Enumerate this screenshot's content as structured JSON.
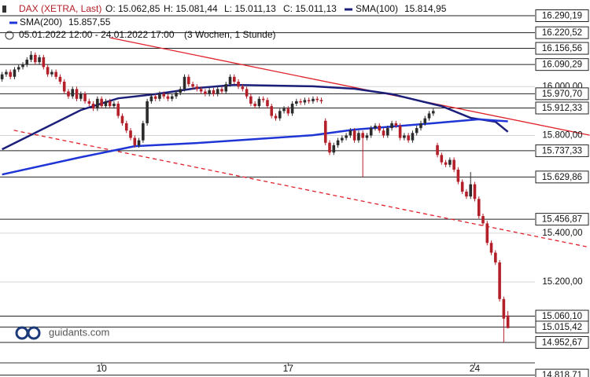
{
  "chart_data": {
    "type": "candlestick",
    "header": {
      "o": "O: 15.062,85",
      "h": "H: 15.081,44",
      "l": "L: 15.011,13",
      "c": "C: 15.011,13",
      "period": "05.01.2022 12:00 - 24.01.2022 17:00",
      "span": "(3 Wochen, 1 Stunde)"
    },
    "watermark": "guidants.com",
    "xlim": [
      -0.5,
      141.8
    ],
    "ylim": [
      14811,
      16354.5
    ],
    "xticks": [
      {
        "value": 24,
        "label": "10"
      },
      {
        "value": 69,
        "label": "17"
      },
      {
        "value": 114,
        "label": "24"
      }
    ],
    "yticks": [
      {
        "value": 16000,
        "label": "16.000,00"
      },
      {
        "value": 15800,
        "label": "15.800,00"
      },
      {
        "value": 15400,
        "label": "15.400,00"
      },
      {
        "value": 15200,
        "label": "15.200,00"
      }
    ],
    "grid": true,
    "levels": [
      {
        "value": 16290.19,
        "label": "16.290,19"
      },
      {
        "value": 16220.52,
        "label": "16.220,52"
      },
      {
        "value": 16156.56,
        "label": "16.156,56"
      },
      {
        "value": 16090.29,
        "label": "16.090,29"
      },
      {
        "value": 15970.7,
        "label": "15.970,70"
      },
      {
        "value": 15912.33,
        "label": "15.912,33"
      },
      {
        "value": 15737.33,
        "label": "15.737,33"
      },
      {
        "value": 15629.86,
        "label": "15.629,86"
      },
      {
        "value": 15456.87,
        "label": "15.456,87"
      },
      {
        "value": 15060.1,
        "label": "15.060,10"
      },
      {
        "value": 15015.42,
        "label": "15.015,42"
      },
      {
        "value": 14952.67,
        "label": "14.952,67"
      },
      {
        "value": 14818.71,
        "label": "14.818,71"
      }
    ],
    "series": [
      {
        "name": "DAX (XETRA, Last)",
        "up_color": "#2b2b2b",
        "down_color": "#b3202a",
        "open": [
          16030,
          16050,
          16060,
          16040,
          16070,
          16080,
          16090,
          16110,
          16130,
          16100,
          16120,
          16080,
          16050,
          16060,
          16040,
          16020,
          15980,
          15960,
          15990,
          15950,
          15970,
          15940,
          15930,
          15910,
          15950,
          15920,
          15940,
          15920,
          15930,
          15880,
          15850,
          15820,
          15790,
          15760,
          15780,
          15850,
          15940,
          15960,
          15950,
          15970,
          15960,
          15950,
          15960,
          15975,
          15990,
          16040,
          16010,
          16000,
          15990,
          15980,
          15970,
          15985,
          15970,
          15990,
          15980,
          16010,
          16040,
          16020,
          16000,
          15990,
          15960,
          15930,
          15920,
          15950,
          15945,
          15920,
          15880,
          15870,
          15900,
          15910,
          15890,
          15930,
          15940,
          15935,
          15945,
          15940,
          15950,
          15945,
          15860,
          15770,
          15730,
          15760,
          15780,
          15790,
          15800,
          15820,
          15780,
          15810,
          15790,
          15800,
          15830,
          15840,
          15820,
          15800,
          15830,
          15850,
          15840,
          15790,
          15800,
          15780,
          15810,
          15830,
          15850,
          15870,
          15890,
          15760,
          15720,
          15690,
          15680,
          15700,
          15660,
          15610,
          15570,
          15550,
          15600,
          15540,
          15470,
          15440,
          15360,
          15320,
          15280,
          15130,
          15062.85
        ],
        "high": [
          16060,
          16070,
          16070,
          16080,
          16090,
          16100,
          16120,
          16145,
          16140,
          16130,
          16130,
          16090,
          16070,
          16070,
          16050,
          16030,
          15990,
          16000,
          16000,
          15980,
          15980,
          15950,
          15940,
          15960,
          15960,
          15950,
          15950,
          15940,
          15940,
          15890,
          15860,
          15830,
          15800,
          15790,
          15860,
          15950,
          15970,
          15970,
          15980,
          15980,
          15970,
          15970,
          15985,
          16000,
          16050,
          16050,
          16020,
          16010,
          16000,
          15990,
          15995,
          15995,
          16000,
          16000,
          16020,
          16050,
          16050,
          16030,
          16010,
          16000,
          15970,
          15940,
          15960,
          15960,
          15955,
          15930,
          15890,
          15910,
          15920,
          15920,
          15940,
          15950,
          15950,
          15955,
          15955,
          15960,
          15960,
          15955,
          15870,
          15780,
          15770,
          15790,
          15800,
          15810,
          15830,
          15830,
          15820,
          15820,
          15810,
          15840,
          15850,
          15850,
          15830,
          15840,
          15860,
          15860,
          15850,
          15810,
          15810,
          15820,
          15840,
          15860,
          15880,
          15900,
          15910,
          15770,
          15730,
          15700,
          15710,
          15710,
          15670,
          15620,
          15580,
          15650,
          15610,
          15550,
          15480,
          15450,
          15370,
          15330,
          15290,
          15140,
          15081.44
        ],
        "low": [
          16020,
          16040,
          16030,
          16030,
          16060,
          16070,
          16080,
          16100,
          16090,
          16090,
          16070,
          16040,
          16040,
          16030,
          16010,
          15970,
          15950,
          15950,
          15940,
          15940,
          15930,
          15920,
          15900,
          15900,
          15910,
          15910,
          15910,
          15910,
          15870,
          15840,
          15810,
          15780,
          15750,
          15750,
          15770,
          15840,
          15930,
          15940,
          15940,
          15950,
          15940,
          15940,
          15950,
          15965,
          15980,
          16000,
          15990,
          15980,
          15970,
          15960,
          15960,
          15960,
          15960,
          15970,
          15970,
          16000,
          16010,
          15990,
          15980,
          15950,
          15920,
          15910,
          15910,
          15935,
          15910,
          15870,
          15860,
          15860,
          15890,
          15880,
          15880,
          15920,
          15925,
          15925,
          15930,
          15930,
          15935,
          15930,
          15760,
          15720,
          15720,
          15750,
          15770,
          15780,
          15790,
          15770,
          15770,
          15630,
          15780,
          15790,
          15820,
          15810,
          15790,
          15790,
          15820,
          15830,
          15780,
          15780,
          15770,
          15770,
          15800,
          15820,
          15840,
          15860,
          15880,
          15710,
          15680,
          15670,
          15670,
          15650,
          15600,
          15560,
          15540,
          15540,
          15530,
          15460,
          15430,
          15350,
          15310,
          15270,
          15120,
          14952.67,
          15011.13
        ],
        "close": [
          16050,
          16060,
          16040,
          16070,
          16080,
          16090,
          16110,
          16130,
          16100,
          16120,
          16080,
          16050,
          16060,
          16040,
          16020,
          15980,
          15960,
          15990,
          15950,
          15970,
          15940,
          15930,
          15910,
          15950,
          15920,
          15940,
          15920,
          15930,
          15880,
          15850,
          15820,
          15790,
          15760,
          15780,
          15850,
          15940,
          15960,
          15950,
          15970,
          15960,
          15950,
          15960,
          15975,
          15990,
          16040,
          16010,
          16000,
          15990,
          15980,
          15970,
          15985,
          15970,
          15990,
          15980,
          16010,
          16040,
          16020,
          16000,
          15990,
          15960,
          15930,
          15920,
          15950,
          15945,
          15920,
          15880,
          15870,
          15900,
          15910,
          15890,
          15930,
          15940,
          15935,
          15945,
          15940,
          15950,
          15945,
          15940,
          15770,
          15730,
          15760,
          15780,
          15790,
          15800,
          15820,
          15780,
          15810,
          15790,
          15800,
          15830,
          15840,
          15820,
          15800,
          15830,
          15850,
          15840,
          15790,
          15800,
          15780,
          15810,
          15830,
          15850,
          15870,
          15890,
          15900,
          15720,
          15690,
          15680,
          15700,
          15660,
          15610,
          15570,
          15550,
          15600,
          15540,
          15470,
          15440,
          15360,
          15320,
          15280,
          15130,
          15050,
          15011.13
        ]
      }
    ],
    "overlays": [
      {
        "name": "SMA(100)",
        "value_label": "15.814,95",
        "color": "#1c1f7a",
        "x": [
          0,
          19,
          28,
          37,
          47,
          56,
          75,
          85,
          94,
          106,
          113,
          119,
          122
        ],
        "values": [
          15743,
          15904,
          15952,
          15969,
          15994,
          16007,
          16001,
          15991,
          15969,
          15920,
          15872,
          15856,
          15814.95
        ]
      },
      {
        "name": "SMA(200)",
        "value_label": "15.857,55",
        "color": "#1f35d6",
        "x": [
          0,
          19,
          32,
          47,
          75,
          85,
          104,
          115,
          122
        ],
        "values": [
          15640,
          15711,
          15756,
          15769,
          15801,
          15824,
          15850,
          15866,
          15857.55
        ]
      }
    ],
    "trendlines": [
      {
        "color": "#e0202a",
        "dashed": false,
        "x": [
          26,
          141.7
        ],
        "values": [
          16200,
          15801
        ]
      },
      {
        "color": "#e0202a",
        "dashed": true,
        "x": [
          2.85,
          141.7
        ],
        "values": [
          15821,
          15342
        ]
      }
    ]
  }
}
